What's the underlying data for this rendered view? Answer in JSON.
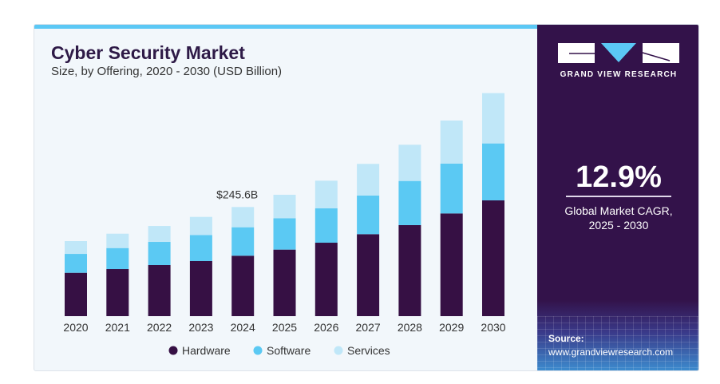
{
  "header": {
    "title": "Cyber Security Market",
    "subtitle": "Size, by Offering, 2020 - 2030 (USD Billion)"
  },
  "brand": {
    "name": "GRAND VIEW RESEARCH"
  },
  "stat": {
    "value": "12.9%",
    "label_line1": "Global Market CAGR,",
    "label_line2": "2025 - 2030"
  },
  "source": {
    "label": "Source:",
    "url": "www.grandviewresearch.com"
  },
  "colors": {
    "Hardware": "#361044",
    "Software": "#5bc9f3",
    "Services": "#c0e7f8",
    "panel": "#33124a",
    "accent": "#5bc8f5"
  },
  "chart_data": {
    "type": "bar",
    "stacked": true,
    "title": "Cyber Security Market",
    "subtitle": "Size, by Offering, 2020 - 2030 (USD Billion)",
    "categories": [
      "2020",
      "2021",
      "2022",
      "2023",
      "2024",
      "2025",
      "2026",
      "2027",
      "2028",
      "2029",
      "2030"
    ],
    "series": [
      {
        "name": "Hardware",
        "values": [
          97.6,
          106.0,
          115.0,
          124.0,
          136.0,
          149.8,
          165.3,
          184.5,
          204.9,
          231.2,
          260.6
        ]
      },
      {
        "name": "Software",
        "values": [
          42.5,
          47.3,
          52.1,
          58.7,
          64.1,
          70.7,
          77.3,
          86.9,
          99.4,
          112.1,
          128.2
        ]
      },
      {
        "name": "Services",
        "values": [
          28.8,
          32.3,
          35.9,
          40.7,
          45.5,
          52.7,
          62.3,
          71.3,
          81.5,
          97.0,
          113.2
        ]
      }
    ],
    "annotations": [
      {
        "category": "2024",
        "text": "$245.6B"
      }
    ],
    "ylim": [
      0,
      560
    ],
    "grid": false,
    "y_axis_visible": false,
    "legend": "bottom"
  }
}
